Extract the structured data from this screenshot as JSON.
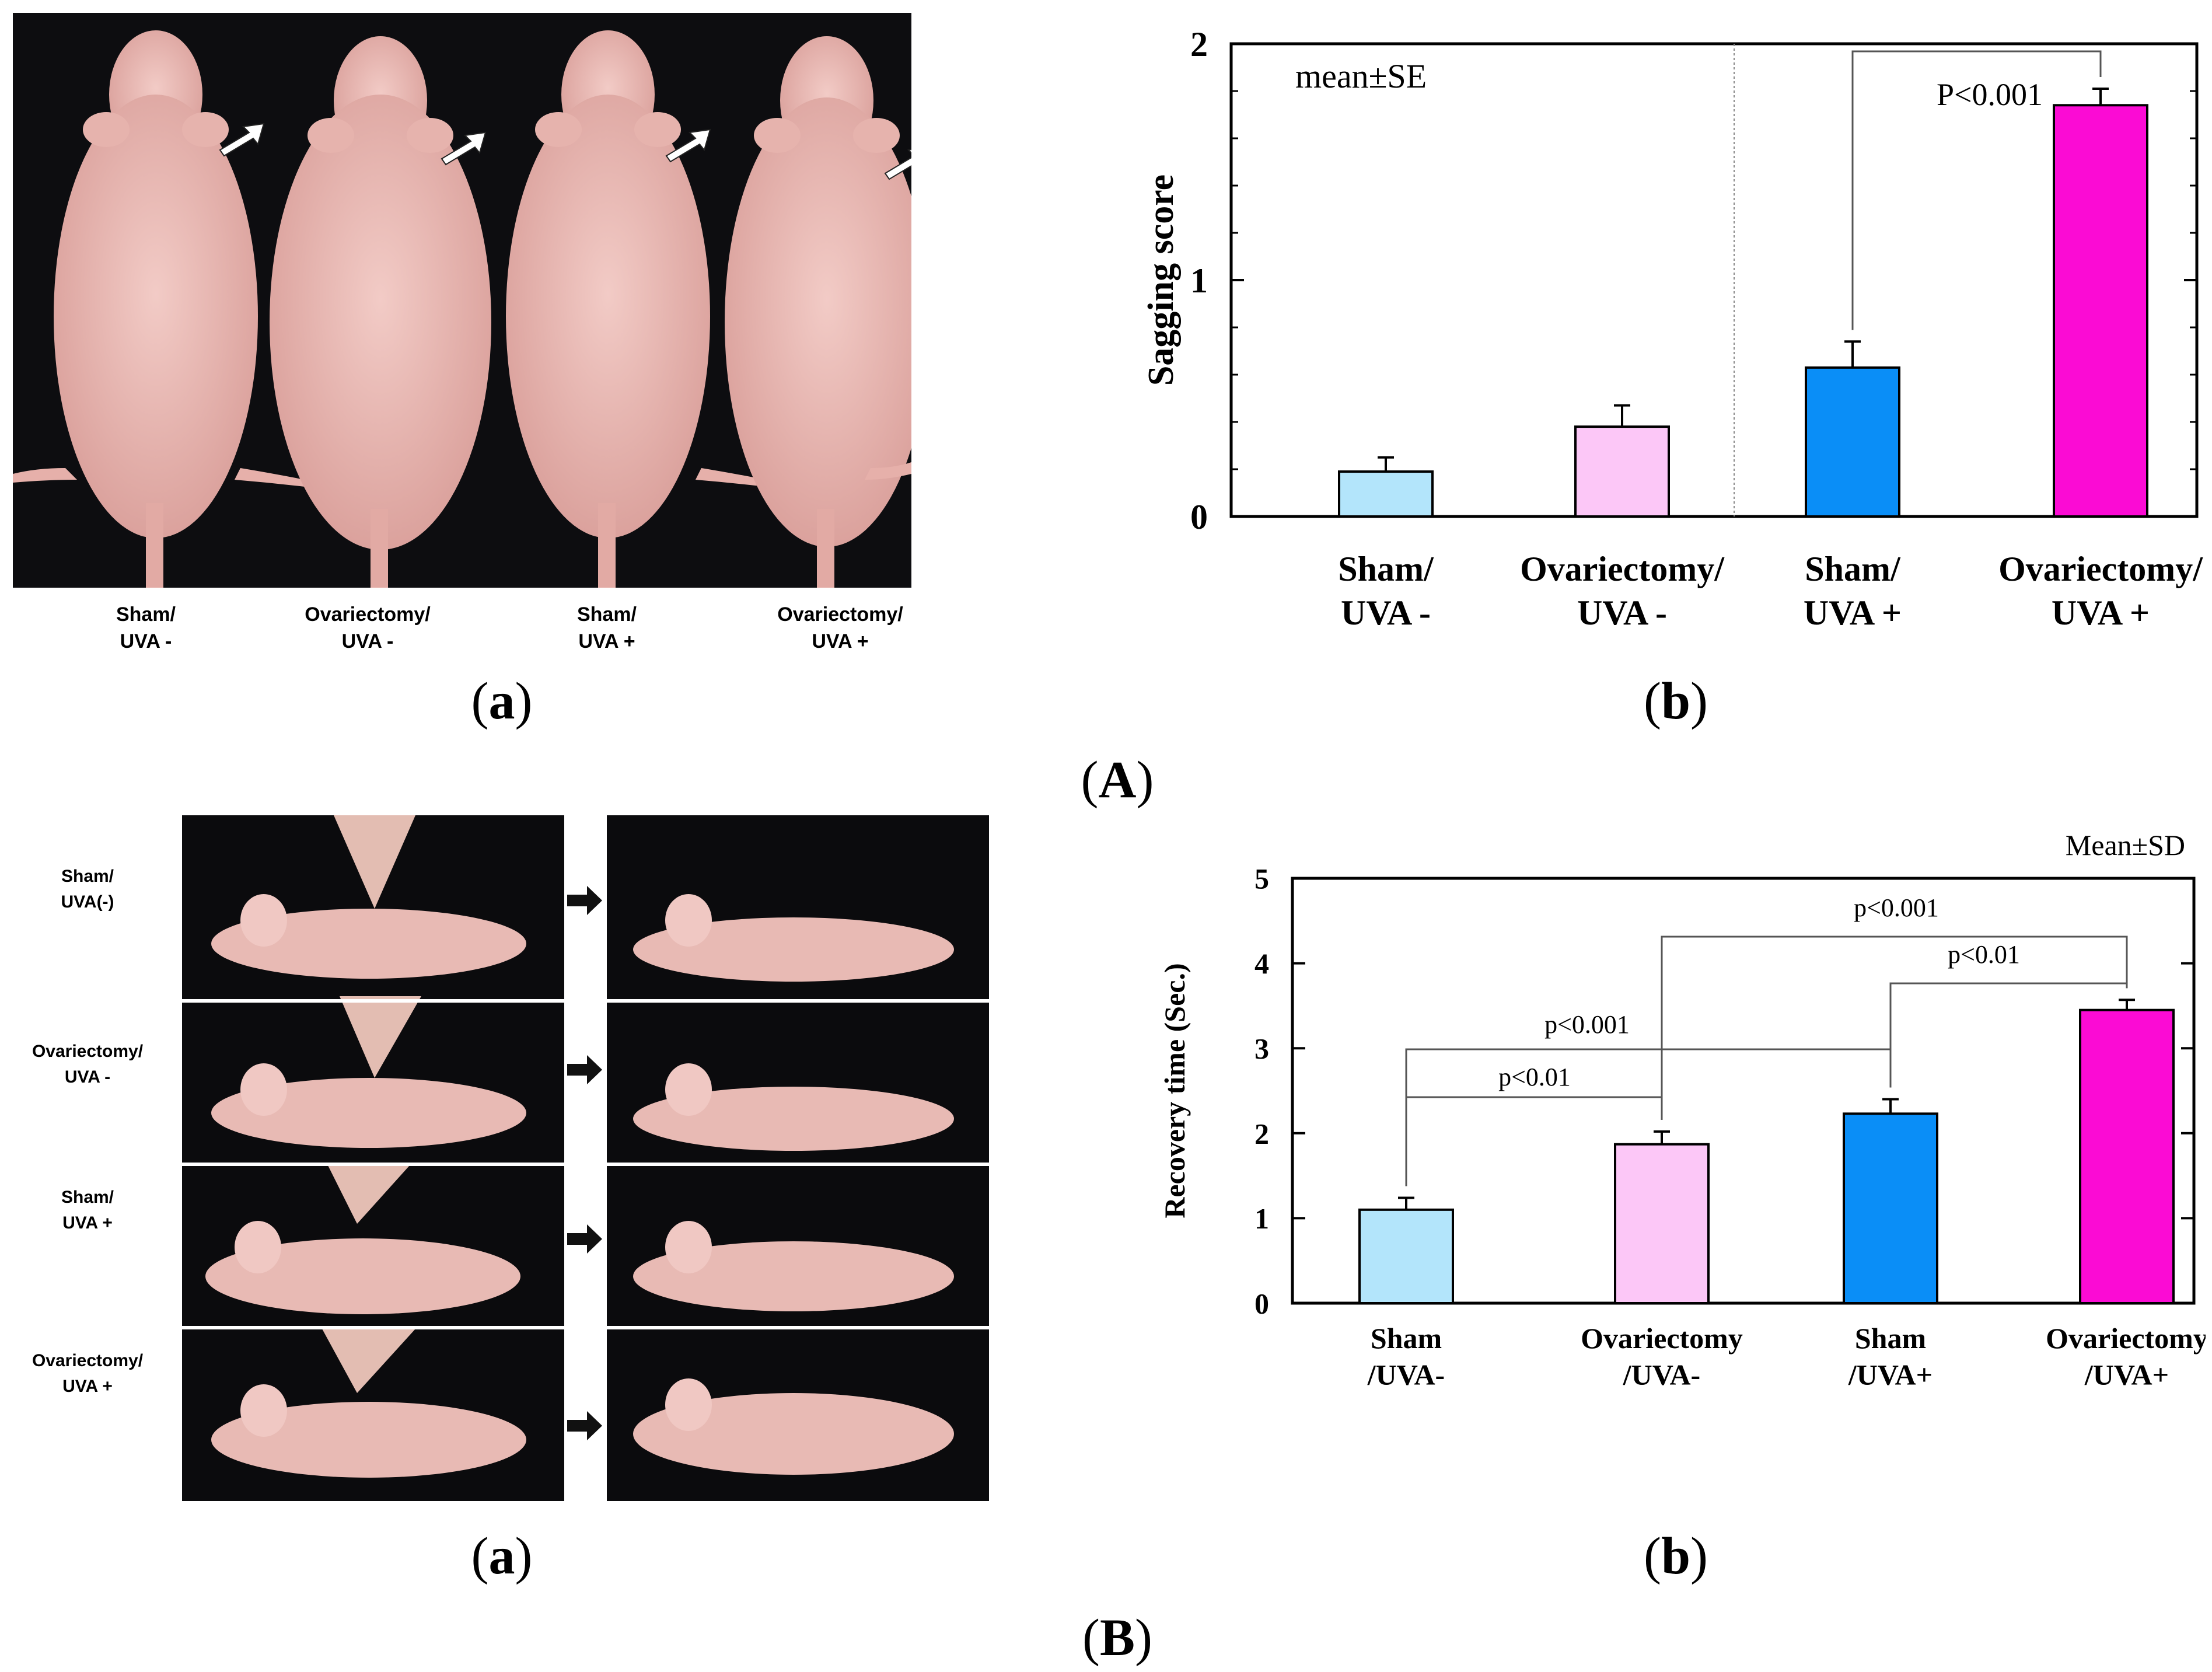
{
  "figure": {
    "panel_A_label": "A",
    "panel_B_label": "B",
    "sub_a_A": "a",
    "sub_b_A": "b",
    "sub_a_B": "a",
    "sub_b_B": "b"
  },
  "photo_A": {
    "captions": [
      "Sham/\nUVA -",
      "Ovariectomy/\nUVA -",
      "Sham/\nUVA +",
      "Ovariectomy/\nUVA +"
    ]
  },
  "photo_B": {
    "rows": [
      "Sham/\nUVA(-)",
      "Ovariectomy/\nUVA -",
      "Sham/\nUVA +",
      "Ovariectomy/\nUVA +"
    ]
  },
  "colors": {
    "c1": "#b3e5fb",
    "c2": "#fcc7f7",
    "c3": "#0a8ef7",
    "c4": "#fb0bd4"
  },
  "chart_data": [
    {
      "type": "bar",
      "title": "",
      "ylabel": "Sagging score",
      "xlabel": "",
      "ylim": [
        0,
        2
      ],
      "yticks": [
        "0",
        "1",
        "2"
      ],
      "annotation_stat": "mean±SE",
      "categories": [
        "Sham/\nUVA -",
        "Ovariectomy/\nUVA -",
        "Sham/\nUVA +",
        "Ovariectomy/\nUVA +"
      ],
      "values": [
        0.19,
        0.38,
        0.63,
        1.74
      ],
      "errors": [
        0.06,
        0.09,
        0.11,
        0.07
      ],
      "significance": [
        {
          "from": 2,
          "to": 3,
          "label": "P<0.001"
        }
      ]
    },
    {
      "type": "bar",
      "title": "",
      "ylabel": "Recovery time (Sec.)",
      "xlabel": "",
      "ylim": [
        0,
        5
      ],
      "yticks": [
        "0",
        "1",
        "2",
        "3",
        "4",
        "5"
      ],
      "annotation_stat": "Mean±SD",
      "categories": [
        "Sham\n/UVA-",
        "Ovariectomy\n/UVA-",
        "Sham\n/UVA+",
        "Ovariectomy\n/UVA+"
      ],
      "values": [
        1.1,
        1.87,
        2.23,
        3.45
      ],
      "errors": [
        0.14,
        0.15,
        0.17,
        0.12
      ],
      "significance": [
        {
          "from": 0,
          "to": 1,
          "label": "p<0.01"
        },
        {
          "from": 0,
          "to": 2,
          "label": "p<0.001"
        },
        {
          "from": 1,
          "to": 3,
          "label": "p<0.001"
        },
        {
          "from": 2,
          "to": 3,
          "label": "p<0.01"
        }
      ]
    }
  ]
}
